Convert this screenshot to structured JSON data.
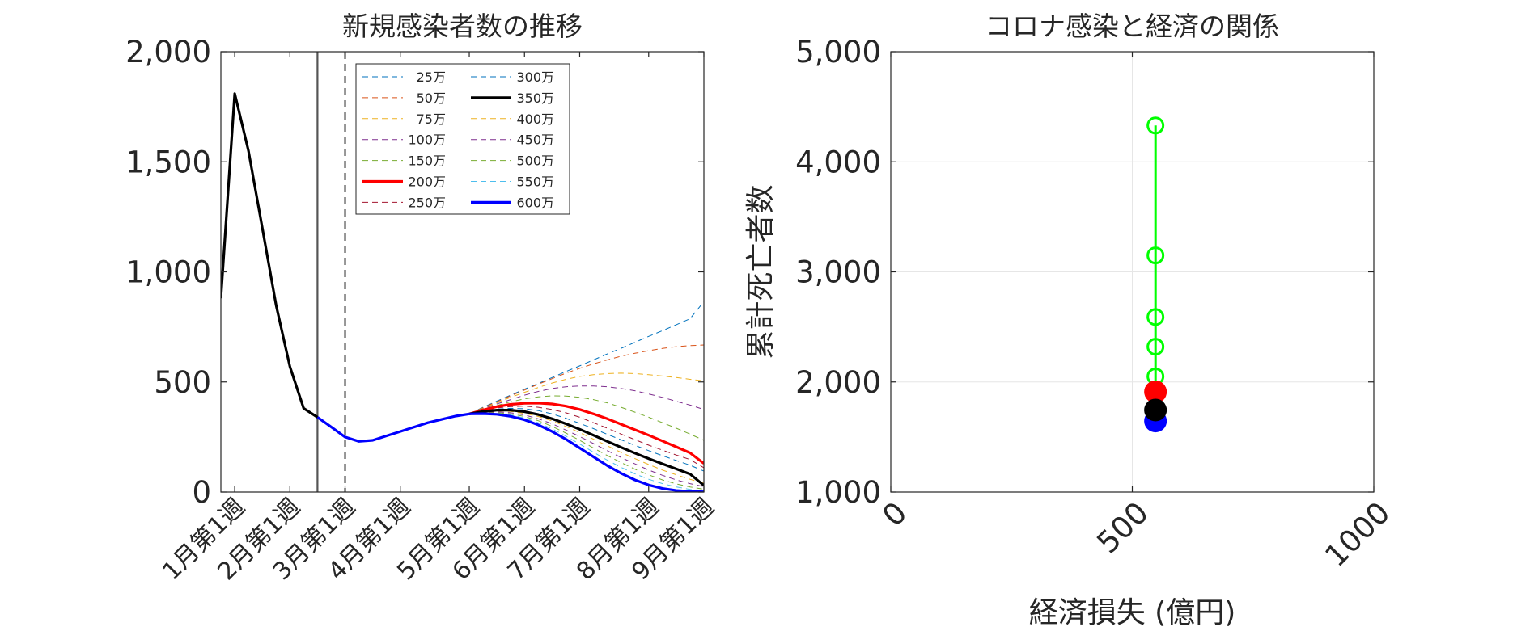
{
  "chart_data": [
    {
      "type": "line",
      "title": "新規感染者数の推移",
      "xlabel": "",
      "ylabel": "",
      "ylim": [
        0,
        2000
      ],
      "xlim": [
        0,
        35
      ],
      "x_ticks": [
        {
          "x": 1,
          "label": "1月第1週"
        },
        {
          "x": 5,
          "label": "2月第1週"
        },
        {
          "x": 9,
          "label": "3月第1週"
        },
        {
          "x": 13,
          "label": "4月第1週"
        },
        {
          "x": 18,
          "label": "5月第1週"
        },
        {
          "x": 22,
          "label": "6月第1週"
        },
        {
          "x": 26,
          "label": "7月第1週"
        },
        {
          "x": 31,
          "label": "8月第1週"
        },
        {
          "x": 35,
          "label": "9月第1週"
        }
      ],
      "y_ticks": [
        {
          "y": 0,
          "label": "0"
        },
        {
          "y": 500,
          "label": "500"
        },
        {
          "y": 1000,
          "label": "1,000"
        },
        {
          "y": 1500,
          "label": "1,500"
        },
        {
          "y": 2000,
          "label": "2,000"
        }
      ],
      "vlines": [
        {
          "x": 7,
          "style": "solid"
        },
        {
          "x": 9,
          "style": "dashed"
        }
      ],
      "history": {
        "x": [
          0,
          1,
          2,
          3,
          4,
          5,
          6,
          7
        ],
        "y": [
          880,
          1810,
          1550,
          1200,
          850,
          570,
          380,
          340
        ],
        "color": "#000000"
      },
      "common": {
        "x": [
          7,
          8,
          9,
          10,
          11,
          12,
          13,
          14,
          15,
          16,
          17,
          18
        ],
        "y": [
          340,
          295,
          250,
          230,
          235,
          255,
          275,
          295,
          315,
          330,
          345,
          355
        ],
        "color": "#0000ff"
      },
      "scenario_x": [
        18,
        19,
        20,
        21,
        22,
        23,
        24,
        25,
        26,
        27,
        28,
        29,
        30,
        31,
        32,
        33,
        34,
        35
      ],
      "series": [
        {
          "name": "25万",
          "color": "#0072BD",
          "style": "dashed",
          "width": 1,
          "values": [
            355,
            385,
            413,
            440,
            467,
            493,
            520,
            547,
            573,
            600,
            627,
            653,
            680,
            707,
            733,
            760,
            787,
            865
          ]
        },
        {
          "name": "50万",
          "color": "#D95319",
          "style": "dashed",
          "width": 1,
          "values": [
            355,
            383,
            410,
            437,
            463,
            490,
            515,
            540,
            562,
            582,
            600,
            617,
            630,
            642,
            652,
            660,
            665,
            668
          ]
        },
        {
          "name": "75万",
          "color": "#EDB120",
          "style": "dashed",
          "width": 1,
          "values": [
            355,
            380,
            405,
            430,
            453,
            475,
            495,
            512,
            525,
            533,
            538,
            540,
            538,
            533,
            527,
            520,
            512,
            505
          ]
        },
        {
          "name": "100万",
          "color": "#7E2F8E",
          "style": "dashed",
          "width": 1,
          "values": [
            355,
            378,
            400,
            420,
            440,
            457,
            470,
            478,
            482,
            482,
            478,
            470,
            460,
            445,
            430,
            412,
            395,
            375
          ]
        },
        {
          "name": "150万",
          "color": "#77AC30",
          "style": "dashed",
          "width": 1,
          "values": [
            355,
            375,
            393,
            410,
            423,
            432,
            437,
            436,
            430,
            420,
            405,
            385,
            363,
            340,
            315,
            290,
            263,
            235
          ]
        },
        {
          "name": "200万",
          "color": "#ff0000",
          "style": "solid",
          "width": 3.2,
          "values": [
            355,
            373,
            388,
            398,
            403,
            404,
            400,
            390,
            375,
            355,
            333,
            308,
            283,
            258,
            232,
            205,
            178,
            130
          ]
        },
        {
          "name": "250万",
          "color": "#A2142F",
          "style": "dashed",
          "width": 1,
          "values": [
            355,
            370,
            382,
            388,
            390,
            385,
            375,
            360,
            340,
            315,
            290,
            263,
            238,
            213,
            190,
            168,
            148,
            110
          ]
        },
        {
          "name": "300万",
          "color": "#0072BD",
          "style": "dashed",
          "width": 1,
          "values": [
            355,
            368,
            377,
            380,
            378,
            370,
            355,
            335,
            312,
            288,
            262,
            237,
            212,
            188,
            165,
            143,
            122,
            95
          ]
        },
        {
          "name": "350万",
          "color": "#000000",
          "style": "solid",
          "width": 3.2,
          "values": [
            355,
            366,
            372,
            372,
            365,
            352,
            333,
            310,
            285,
            258,
            230,
            203,
            177,
            152,
            128,
            105,
            82,
            30
          ]
        },
        {
          "name": "400万",
          "color": "#EDB120",
          "style": "dashed",
          "width": 1,
          "values": [
            355,
            364,
            368,
            366,
            357,
            343,
            323,
            298,
            270,
            240,
            210,
            180,
            152,
            125,
            100,
            78,
            58,
            40
          ]
        },
        {
          "name": "450万",
          "color": "#7E2F8E",
          "style": "dashed",
          "width": 1,
          "values": [
            355,
            362,
            364,
            360,
            350,
            333,
            310,
            282,
            252,
            220,
            188,
            157,
            128,
            100,
            76,
            55,
            38,
            25
          ]
        },
        {
          "name": "500万",
          "color": "#77AC30",
          "style": "dashed",
          "width": 1,
          "values": [
            355,
            360,
            360,
            355,
            343,
            324,
            298,
            268,
            235,
            200,
            166,
            134,
            104,
            78,
            55,
            37,
            23,
            13
          ]
        },
        {
          "name": "550万",
          "color": "#4DBEEE",
          "style": "dashed",
          "width": 1,
          "values": [
            355,
            358,
            357,
            350,
            336,
            315,
            287,
            254,
            218,
            181,
            145,
            112,
            83,
            58,
            38,
            23,
            12,
            6
          ]
        },
        {
          "name": "600万",
          "color": "#0000ff",
          "style": "solid",
          "width": 3.2,
          "values": [
            355,
            356,
            353,
            344,
            328,
            305,
            275,
            240,
            200,
            160,
            120,
            85,
            55,
            32,
            16,
            7,
            3,
            1
          ]
        }
      ],
      "legend_position": "top-right",
      "grid": false
    },
    {
      "type": "scatter",
      "title": "コロナ感染と経済の関係",
      "xlabel": "経済損失 (億円)",
      "ylabel": "累計死亡者数",
      "xlim": [
        0,
        1000
      ],
      "ylim": [
        1000,
        5000
      ],
      "x_ticks": [
        {
          "x": 0,
          "label": "0"
        },
        {
          "x": 500,
          "label": "500"
        },
        {
          "x": 1000,
          "label": "1000"
        }
      ],
      "y_ticks": [
        {
          "y": 1000,
          "label": "1,000"
        },
        {
          "y": 2000,
          "label": "2,000"
        },
        {
          "y": 3000,
          "label": "3,000"
        },
        {
          "y": 4000,
          "label": "4,000"
        },
        {
          "y": 5000,
          "label": "5,000"
        }
      ],
      "grid": true,
      "line_series": {
        "color": "#00ff00",
        "x": [
          548,
          548,
          548,
          548,
          548,
          548,
          548
        ],
        "y": [
          4330,
          3150,
          2590,
          2320,
          2050,
          1900,
          1660
        ]
      },
      "hollow_markers": {
        "color": "#00ff00",
        "x": [
          548,
          548,
          548,
          548,
          548
        ],
        "y": [
          4330,
          3150,
          2590,
          2320,
          2050
        ]
      },
      "filled_markers": [
        {
          "x": 548,
          "y": 1910,
          "color": "#ff0000"
        },
        {
          "x": 548,
          "y": 1645,
          "color": "#0000ff"
        },
        {
          "x": 548,
          "y": 1745,
          "color": "#000000"
        }
      ]
    }
  ]
}
